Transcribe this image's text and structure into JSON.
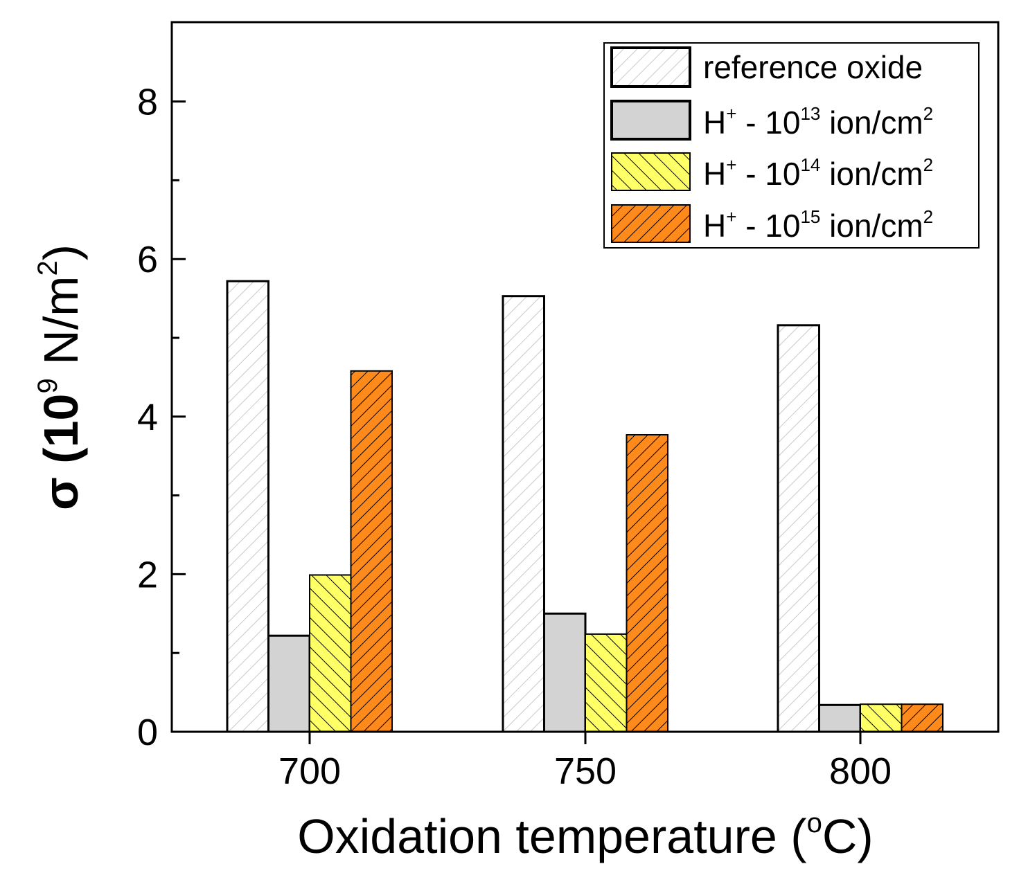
{
  "chart_data": {
    "type": "bar",
    "title": "",
    "xlabel": "Oxidation temperature (°C)",
    "xlabel_parts": {
      "main": "Oxidation temperature (",
      "sup": "o",
      "end": "C)"
    },
    "ylabel": "σ (10⁹ N/m²)",
    "ylabel_parts": {
      "sigma": "σ (10",
      "sup1": "9",
      "mid": " N/m",
      "sup2": "2",
      "end": ")"
    },
    "categories": [
      "700",
      "750",
      "800"
    ],
    "ylim": [
      0,
      9
    ],
    "yticks": [
      0,
      2,
      4,
      6,
      8
    ],
    "yticks_minor": [
      1,
      3,
      5,
      7
    ],
    "grid": false,
    "legend_position": "top-right",
    "series": [
      {
        "name": "reference oxide",
        "legend": {
          "main": "reference oxide",
          "sup": "",
          "tail": "",
          "sup2": ""
        },
        "values": [
          5.72,
          5.53,
          5.16
        ],
        "fill": "#ffffff",
        "hatch": "#c9c9c9",
        "hatch_dir": "up"
      },
      {
        "name": "H+ - 10^13 ion/cm^2",
        "legend": {
          "main": "H",
          "sup": "+",
          "tail": " - 10",
          "exp": "13",
          "unit": " ion/cm",
          "sup2": "2"
        },
        "values": [
          1.22,
          1.5,
          0.34
        ],
        "fill": "#d3d3d3",
        "hatch": "",
        "hatch_dir": "none"
      },
      {
        "name": "H+ - 10^14 ion/cm^2",
        "legend": {
          "main": "H",
          "sup": "+",
          "tail": " - 10",
          "exp": "14",
          "unit": " ion/cm",
          "sup2": "2"
        },
        "values": [
          1.99,
          1.24,
          0.35
        ],
        "fill": "#ffff66",
        "hatch": "#000000",
        "hatch_dir": "down"
      },
      {
        "name": "H+ - 10^15 ion/cm^2",
        "legend": {
          "main": "H",
          "sup": "+",
          "tail": " - 10",
          "exp": "15",
          "unit": " ion/cm",
          "sup2": "2"
        },
        "values": [
          4.58,
          3.77,
          0.35
        ],
        "fill": "#ff8a1c",
        "hatch": "#000000",
        "hatch_dir": "up"
      }
    ]
  }
}
